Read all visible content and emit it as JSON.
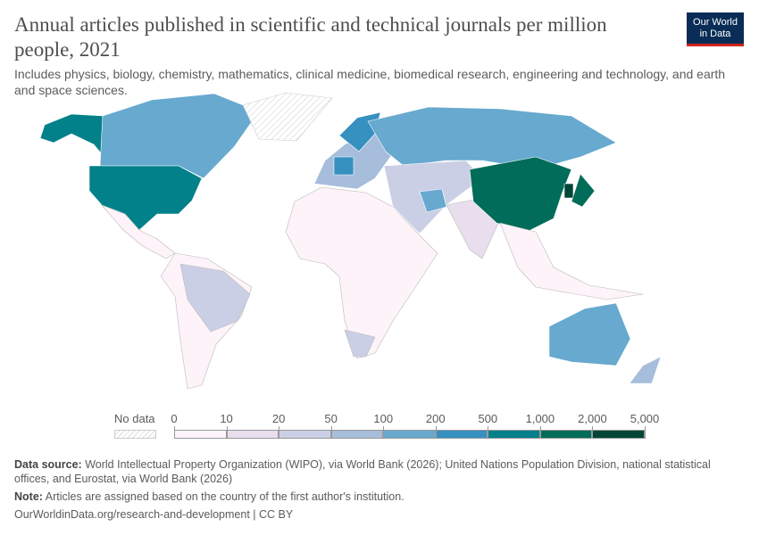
{
  "header": {
    "title": "Annual articles published in scientific and technical journals per million people, 2021",
    "subtitle": "Includes physics, biology, chemistry, mathematics, clinical medicine, biomedical research, engineering and technology, and earth and space sciences.",
    "logo_line1": "Our World",
    "logo_line2": "in Data"
  },
  "legend": {
    "no_data_label": "No data",
    "ticks": [
      "0",
      "10",
      "20",
      "50",
      "100",
      "200",
      "500",
      "1,000",
      "2,000",
      "5,000"
    ],
    "colors": [
      "#fdf3f8",
      "#e8deed",
      "#cbcfe5",
      "#a6bddb",
      "#67a9cf",
      "#3690c0",
      "#02818a",
      "#016c59",
      "#014636"
    ]
  },
  "footer": {
    "source_label": "Data source:",
    "source_text": "World Intellectual Property Organization (WIPO), via World Bank (2026); United Nations Population Division, national statistical offices, and Eurostat, via World Bank (2026)",
    "note_label": "Note:",
    "note_text": "Articles are assigned based on the country of the first author's institution.",
    "url": "OurWorldinData.org/research-and-development | CC BY"
  }
}
